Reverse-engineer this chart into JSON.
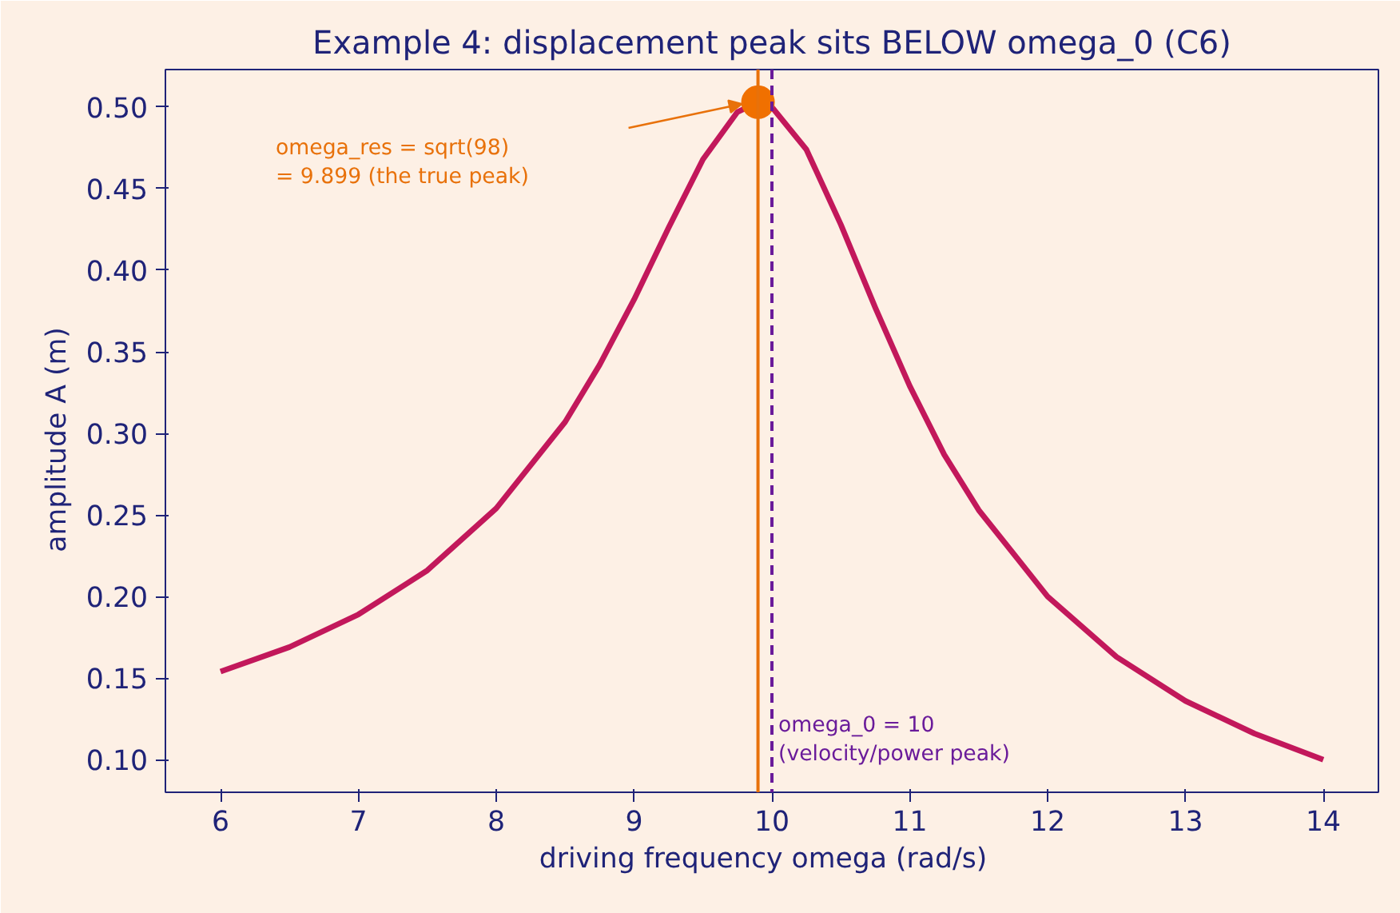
{
  "chart_data": {
    "type": "line",
    "title": "Example 4: displacement peak sits BELOW omega_0 (C6)",
    "xlabel": "driving frequency  omega  (rad/s)",
    "ylabel": "amplitude  A  (m)",
    "series": [
      {
        "color": "#c2185b",
        "x": [
          6,
          6.5,
          7,
          7.5,
          8,
          8.5,
          8.75,
          9,
          9.25,
          9.5,
          9.75,
          9.899,
          10,
          10.25,
          10.5,
          10.75,
          11,
          11.25,
          11.5,
          12,
          12.5,
          13,
          13.5,
          14
        ],
        "values": [
          0.154,
          0.169,
          0.189,
          0.216,
          0.254,
          0.307,
          0.342,
          0.382,
          0.426,
          0.468,
          0.497,
          0.503,
          0.5,
          0.474,
          0.428,
          0.377,
          0.329,
          0.287,
          0.253,
          0.2,
          0.163,
          0.136,
          0.116,
          0.1
        ]
      },
      {
        "type": "scatter",
        "color": "#f07000",
        "marker": "circle",
        "x": [
          9.899
        ],
        "values": [
          0.503
        ]
      }
    ],
    "ref_lines": [
      {
        "axis": "x",
        "value": 9.899,
        "color": "#e8710a",
        "line_style": "solid"
      },
      {
        "axis": "x",
        "value": 10,
        "label": "omega_0 = 10\n(velocity/power peak)",
        "color": "#6a1b9a",
        "line_style": "dashed"
      }
    ],
    "annotations": [
      "omega_res = sqrt(98)\n= 9.899  (the true peak)"
    ],
    "xlim": [
      5.6,
      14.4
    ],
    "xticks": [
      6,
      7,
      8,
      9,
      10,
      11,
      12,
      13,
      14
    ],
    "ylim": [
      0.08,
      0.523
    ],
    "yticks": [
      {
        "value": 0.1,
        "label": "0.10"
      },
      {
        "value": 0.15,
        "label": "0.15"
      },
      {
        "value": 0.2,
        "label": "0.20"
      },
      {
        "value": 0.25,
        "label": "0.25"
      },
      {
        "value": 0.3,
        "label": "0.30"
      },
      {
        "value": 0.35,
        "label": "0.35"
      },
      {
        "value": 0.4,
        "label": "0.40"
      },
      {
        "value": 0.45,
        "label": "0.45"
      },
      {
        "value": 0.5,
        "label": "0.50"
      }
    ],
    "grid": false
  }
}
